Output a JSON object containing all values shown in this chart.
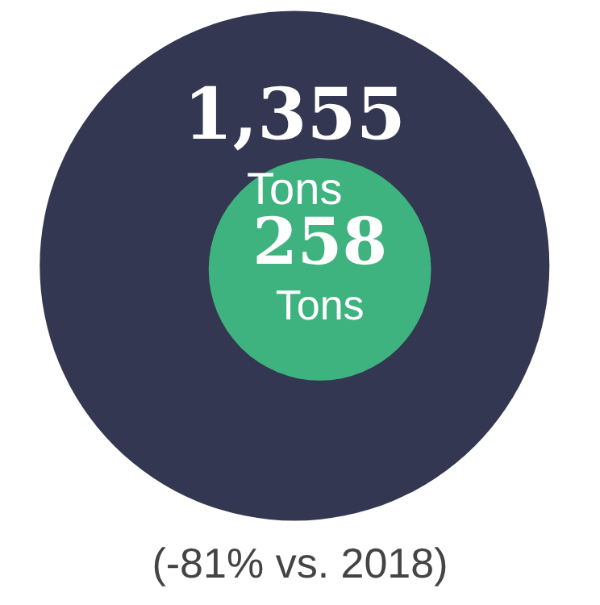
{
  "chart_data": {
    "type": "other",
    "values": [
      1355,
      258
    ],
    "colors": [
      "#343751",
      "#3fb37f"
    ],
    "value_labels": [
      "1,355 Tons",
      "258 Tons"
    ],
    "annotations": [
      "(-81% vs. 2018)"
    ]
  }
}
